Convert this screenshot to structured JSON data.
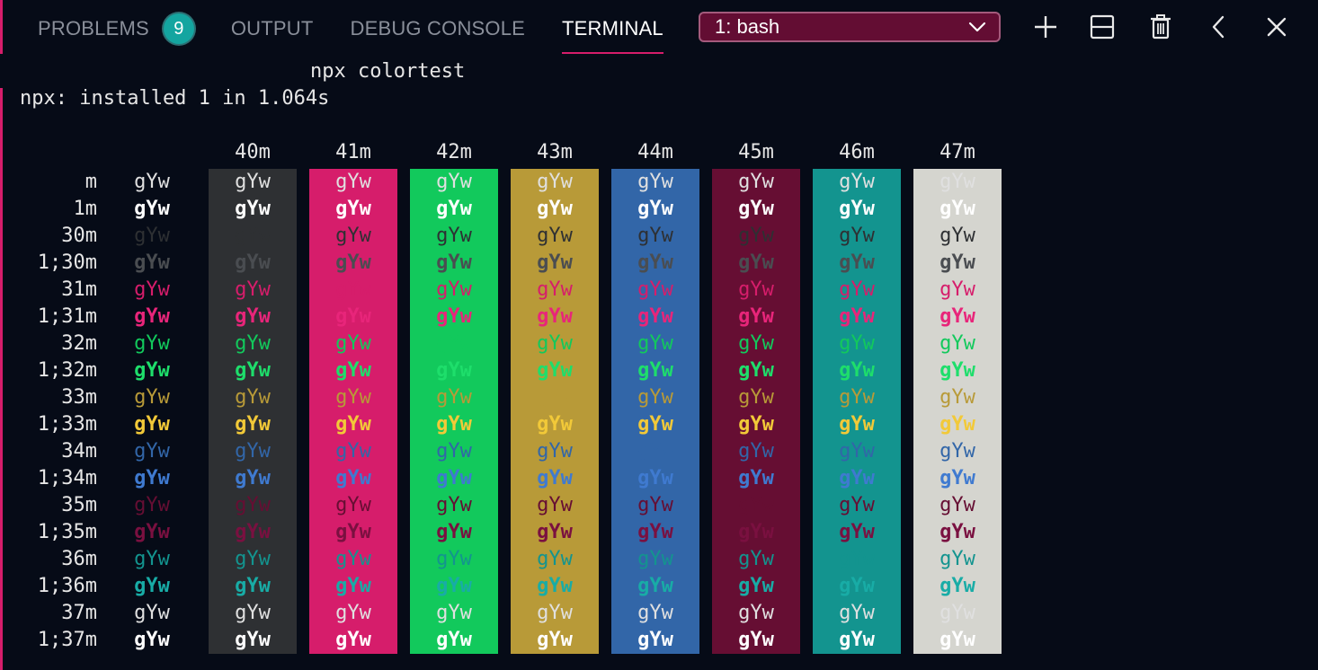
{
  "tabs": [
    {
      "label": "PROBLEMS",
      "badge": "9"
    },
    {
      "label": "OUTPUT"
    },
    {
      "label": "DEBUG CONSOLE"
    },
    {
      "label": "TERMINAL",
      "active": true
    }
  ],
  "terminal_select": {
    "value": "1: bash"
  },
  "toolbar": {
    "icons": [
      "plus-icon",
      "split-icon",
      "trash-icon",
      "chevron-left-icon",
      "close-icon"
    ]
  },
  "terminal": {
    "command": "npx colortest",
    "output_line": "npx: installed 1 in 1.064s",
    "sample_text": "gYw",
    "bg_headers": [
      "40m",
      "41m",
      "42m",
      "43m",
      "44m",
      "45m",
      "46m",
      "47m"
    ],
    "bg_colors": [
      "#2e3033",
      "#d61d6b",
      "#12c95c",
      "#b89a38",
      "#3266a8",
      "#660e33",
      "#13948f",
      "#d5d5cf"
    ],
    "row_labels": [
      "m",
      "1m",
      "30m",
      "1;30m",
      "31m",
      "1;31m",
      "32m",
      "1;32m",
      "33m",
      "1;33m",
      "34m",
      "1;34m",
      "35m",
      "1;35m",
      "36m",
      "1;36m",
      "37m",
      "1;37m"
    ],
    "fg_colors": [
      "#e0e0e0",
      "#ffffff",
      "#2e3033",
      "#4a4d51",
      "#d61d6b",
      "#e8257a",
      "#12c95c",
      "#1ede6b",
      "#b89a38",
      "#f2c938",
      "#3266a8",
      "#3f7ad0",
      "#660e33",
      "#7a1040",
      "#13948f",
      "#18aca6",
      "#e0e0e0",
      "#ffffff"
    ]
  }
}
